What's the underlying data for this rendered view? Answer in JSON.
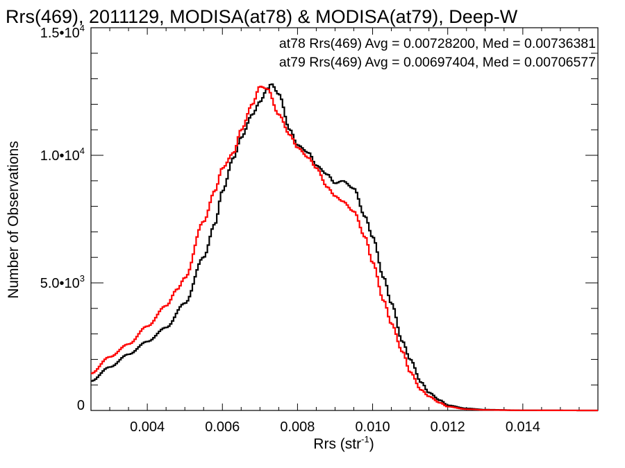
{
  "chart_data": {
    "type": "line",
    "title": "Rrs(469), 2011129, MODISA(at78) & MODISA(at79), Deep-W",
    "xlabel": "Rrs (str",
    "xlabel_sup": "-1",
    "xlabel_close": ")",
    "ylabel": "Number of Observations",
    "xlim": [
      0.0025,
      0.016
    ],
    "ylim": [
      0,
      15000
    ],
    "x_ticks": [
      {
        "value": 0.004,
        "label": "0.004"
      },
      {
        "value": 0.006,
        "label": "0.006"
      },
      {
        "value": 0.008,
        "label": "0.008"
      },
      {
        "value": 0.01,
        "label": "0.010"
      },
      {
        "value": 0.012,
        "label": "0.012"
      },
      {
        "value": 0.014,
        "label": "0.014"
      }
    ],
    "y_ticks": [
      {
        "value": 0,
        "mant": "0",
        "exp": ""
      },
      {
        "value": 5000,
        "mant": "5.0•10",
        "exp": "3"
      },
      {
        "value": 10000,
        "mant": "1.0•10",
        "exp": "4"
      },
      {
        "value": 15000,
        "mant": "1.5•10",
        "exp": "4"
      }
    ],
    "series": [
      {
        "name": "at78",
        "color": "#000000",
        "annotation": "at78 Rrs(469) Avg = 0.00728200, Med = 0.00736381",
        "x": [
          0.0025,
          0.003,
          0.0035,
          0.004,
          0.0045,
          0.005,
          0.0055,
          0.0058,
          0.006,
          0.0063,
          0.0065,
          0.0068,
          0.007,
          0.0072,
          0.0073,
          0.0075,
          0.0078,
          0.008,
          0.0083,
          0.0085,
          0.0088,
          0.009,
          0.0092,
          0.0095,
          0.0098,
          0.01,
          0.0103,
          0.0105,
          0.0108,
          0.011,
          0.0113,
          0.0115,
          0.0118,
          0.012,
          0.0125,
          0.013,
          0.014,
          0.016
        ],
        "y": [
          1150,
          1700,
          2200,
          2700,
          3250,
          4200,
          6000,
          7300,
          8600,
          9900,
          10700,
          11600,
          12100,
          12600,
          12800,
          12400,
          11000,
          10400,
          10100,
          9600,
          9250,
          8900,
          9000,
          8700,
          7600,
          6800,
          5200,
          4200,
          2700,
          2000,
          1100,
          700,
          400,
          200,
          80,
          30,
          5,
          0
        ]
      },
      {
        "name": "at79",
        "color": "#ff0000",
        "annotation": "at79 Rrs(469) Avg = 0.00697404, Med = 0.00706577",
        "x": [
          0.0025,
          0.003,
          0.0035,
          0.004,
          0.0045,
          0.0048,
          0.005,
          0.0055,
          0.0058,
          0.006,
          0.0063,
          0.0065,
          0.0068,
          0.007,
          0.0072,
          0.0075,
          0.0078,
          0.008,
          0.0083,
          0.0085,
          0.0088,
          0.009,
          0.0092,
          0.0095,
          0.0098,
          0.01,
          0.0103,
          0.0105,
          0.0108,
          0.011,
          0.0113,
          0.0115,
          0.0118,
          0.012,
          0.0125,
          0.013,
          0.014,
          0.016
        ],
        "y": [
          1450,
          2100,
          2600,
          3300,
          4100,
          4750,
          5200,
          7400,
          8600,
          9500,
          10100,
          11000,
          12000,
          12700,
          12600,
          11600,
          10800,
          10300,
          9900,
          9500,
          8750,
          8400,
          8200,
          7800,
          6800,
          5800,
          4300,
          3400,
          2300,
          1500,
          800,
          550,
          300,
          150,
          50,
          20,
          5,
          0
        ]
      }
    ]
  }
}
